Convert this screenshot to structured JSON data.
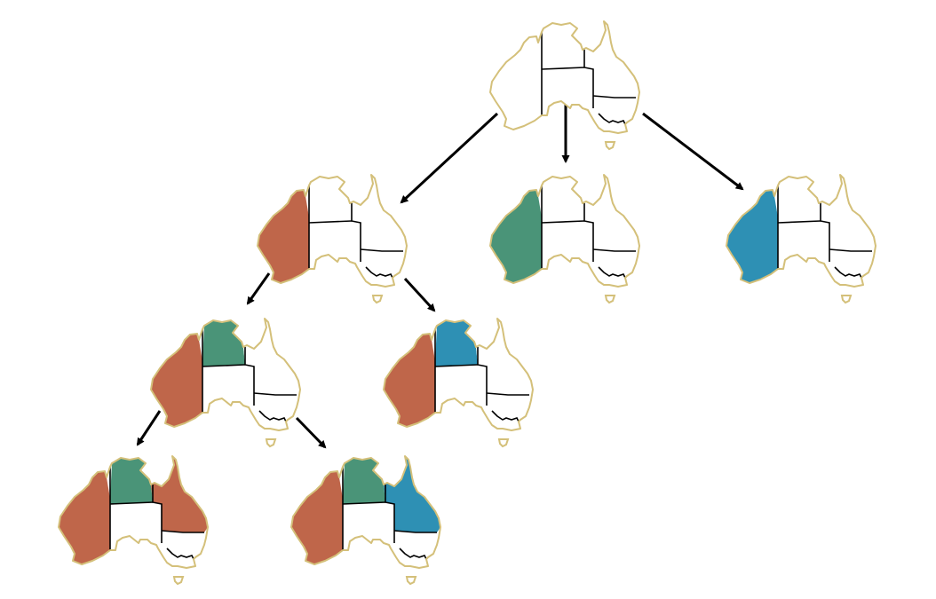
{
  "colors": {
    "outline": "#d4c07a",
    "border": "#000000",
    "edge": "#000000",
    "background": "#ffffff",
    "unassigned": "#ffffff",
    "red": "#bf664a",
    "green": "#4a9478",
    "blue": "#2e90b4"
  },
  "regions": [
    "WA",
    "NT",
    "SA",
    "Q",
    "NSW",
    "V",
    "T"
  ],
  "nodes": [
    {
      "id": "root",
      "assign": {}
    },
    {
      "id": "wa-red",
      "assign": {
        "WA": "red"
      }
    },
    {
      "id": "wa-green",
      "assign": {
        "WA": "green"
      }
    },
    {
      "id": "wa-blue",
      "assign": {
        "WA": "blue"
      }
    },
    {
      "id": "wa-red-nt-green",
      "assign": {
        "WA": "red",
        "NT": "green"
      }
    },
    {
      "id": "wa-red-nt-blue",
      "assign": {
        "WA": "red",
        "NT": "blue"
      }
    },
    {
      "id": "wa-red-nt-green-q-red",
      "assign": {
        "WA": "red",
        "NT": "green",
        "Q": "red"
      }
    },
    {
      "id": "wa-red-nt-green-q-blue",
      "assign": {
        "WA": "red",
        "NT": "green",
        "Q": "blue"
      }
    }
  ],
  "edges": [
    {
      "from": "root",
      "to": "wa-red"
    },
    {
      "from": "root",
      "to": "wa-green"
    },
    {
      "from": "root",
      "to": "wa-blue"
    },
    {
      "from": "wa-red",
      "to": "wa-red-nt-green"
    },
    {
      "from": "wa-red",
      "to": "wa-red-nt-blue"
    },
    {
      "from": "wa-red-nt-green",
      "to": "wa-red-nt-green-q-red"
    },
    {
      "from": "wa-red-nt-green",
      "to": "wa-red-nt-green-q-blue"
    }
  ]
}
